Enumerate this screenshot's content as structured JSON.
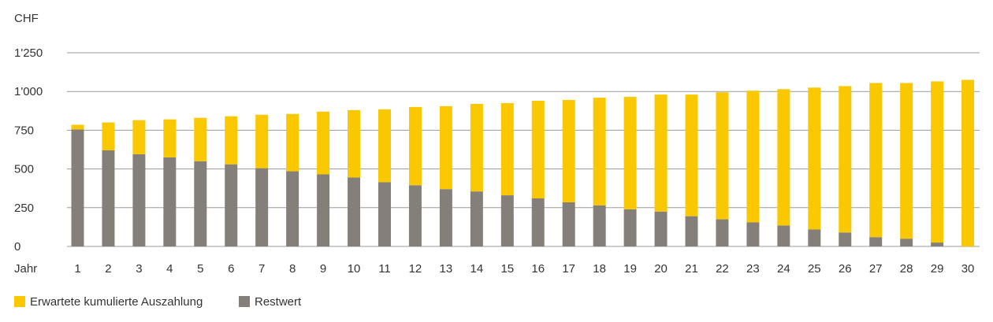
{
  "chart_data": {
    "type": "bar",
    "stacked": true,
    "unit_label": "CHF",
    "xlabel": "Jahr",
    "ylim": [
      0,
      1250
    ],
    "yticks": [
      0,
      250,
      500,
      750,
      1000,
      1250
    ],
    "ytick_labels": [
      "0",
      "250",
      "500",
      "750",
      "1'000",
      "1'250"
    ],
    "grid": true,
    "legend_position": "bottom-left",
    "categories": [
      "1",
      "2",
      "3",
      "4",
      "5",
      "6",
      "7",
      "8",
      "9",
      "10",
      "11",
      "12",
      "13",
      "14",
      "15",
      "16",
      "17",
      "18",
      "19",
      "20",
      "21",
      "22",
      "23",
      "24",
      "25",
      "26",
      "27",
      "28",
      "29",
      "30"
    ],
    "series": [
      {
        "name": "Restwert",
        "color": "#857f7a",
        "values": [
          755,
          620,
          595,
          575,
          550,
          530,
          505,
          485,
          465,
          445,
          415,
          395,
          370,
          355,
          330,
          310,
          285,
          265,
          240,
          225,
          195,
          175,
          155,
          135,
          110,
          90,
          60,
          50,
          25,
          0
        ]
      },
      {
        "name": "Erwartete kumulierte Auszahlung",
        "color": "#fac800",
        "values": [
          30,
          180,
          220,
          245,
          280,
          310,
          345,
          370,
          405,
          435,
          470,
          505,
          535,
          565,
          595,
          630,
          660,
          695,
          725,
          755,
          785,
          820,
          850,
          880,
          915,
          945,
          995,
          1005,
          1040,
          1075
        ]
      }
    ]
  }
}
